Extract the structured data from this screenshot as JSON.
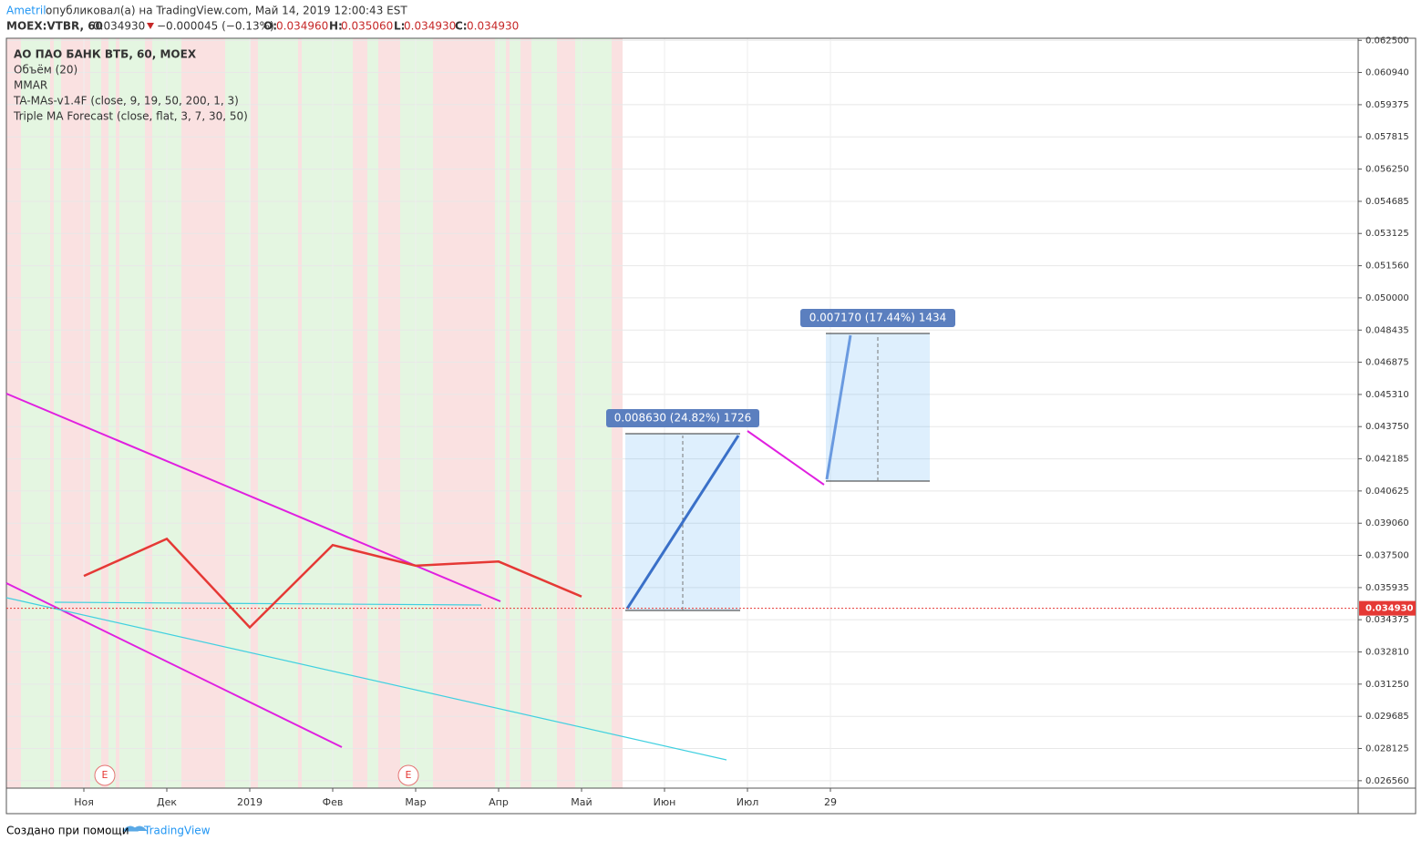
{
  "header": {
    "author": "Ametril",
    "published": "опубликовал(а) на TradingView.com, Май 14, 2019 12:00:43 EST",
    "symbol": "MOEX:VTBR, 60",
    "last": "0.034930",
    "change": "−0.000045 (−0.13%)",
    "o_label": "O:",
    "o": "0.034960",
    "h_label": "H:",
    "h": "0.035060",
    "l_label": "L:",
    "l": "0.034930",
    "c_label": "C:",
    "c": "0.034930"
  },
  "chart_data": {
    "type": "line",
    "title": "АО ПАО БАНК ВТБ, 60, MOEX",
    "indicators": [
      "Объём (20)",
      "MMAR",
      "TA-MAs-v1.4F (close, 9, 19, 50, 200, 1, 3)",
      "Triple MA Forecast (close, flat, 3, 7, 30, 50)"
    ],
    "categories": [
      "Ноя",
      "Дек",
      "2019",
      "Фев",
      "Мар",
      "Апр",
      "Май",
      "Июн",
      "Июл",
      "29"
    ],
    "series": [
      {
        "name": "VTBR",
        "color": "#e53935",
        "values": [
          0.0365,
          0.0383,
          0.034,
          0.038,
          0.037,
          0.0372,
          0.0355,
          null,
          null,
          null
        ]
      }
    ],
    "ylim": [
      0.0262,
      0.0626
    ],
    "yticks": [
      {
        "value": 0.0625,
        "label": "0.062500"
      },
      {
        "value": 0.06094,
        "label": "0.060940"
      },
      {
        "value": 0.059375,
        "label": "0.059375"
      },
      {
        "value": 0.057815,
        "label": "0.057815"
      },
      {
        "value": 0.05625,
        "label": "0.056250"
      },
      {
        "value": 0.054685,
        "label": "0.054685"
      },
      {
        "value": 0.053125,
        "label": "0.053125"
      },
      {
        "value": 0.05156,
        "label": "0.051560"
      },
      {
        "value": 0.05,
        "label": "0.050000"
      },
      {
        "value": 0.048435,
        "label": "0.048435"
      },
      {
        "value": 0.046875,
        "label": "0.046875"
      },
      {
        "value": 0.04531,
        "label": "0.045310"
      },
      {
        "value": 0.04375,
        "label": "0.043750"
      },
      {
        "value": 0.042185,
        "label": "0.042185"
      },
      {
        "value": 0.040625,
        "label": "0.040625"
      },
      {
        "value": 0.03906,
        "label": "0.039060"
      },
      {
        "value": 0.0375,
        "label": "0.037500"
      },
      {
        "value": 0.035935,
        "label": "0.035935"
      },
      {
        "value": 0.034375,
        "label": "0.034375"
      },
      {
        "value": 0.03281,
        "label": "0.032810"
      },
      {
        "value": 0.03125,
        "label": "0.031250"
      },
      {
        "value": 0.029685,
        "label": "0.029685"
      },
      {
        "value": 0.028125,
        "label": "0.028125"
      },
      {
        "value": 0.02656,
        "label": "0.026560"
      }
    ],
    "grid": true,
    "last_price": {
      "value": 0.03493,
      "label": "0.034930"
    },
    "annotations": [
      "0.008630 (24.82%) 1726",
      "0.007170 (17.44%) 1434"
    ],
    "event_marks": [
      "E",
      "E"
    ]
  },
  "footer": {
    "text": "Создано при помощи",
    "brand": "TradingView"
  }
}
